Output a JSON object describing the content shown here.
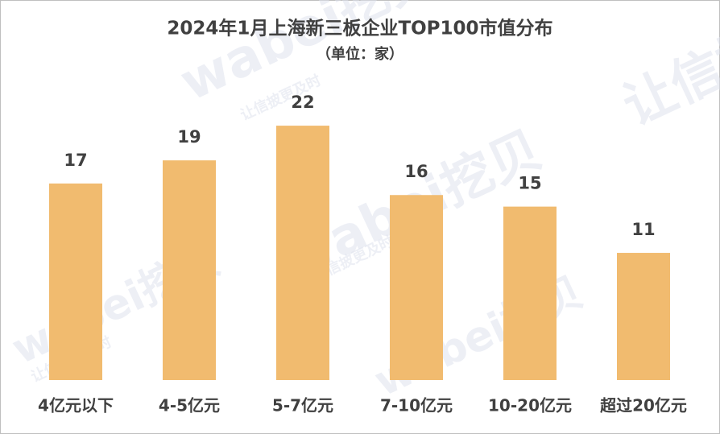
{
  "chart_data": {
    "type": "bar",
    "title": "2024年1月上海新三板企业TOP100市值分布",
    "subtitle": "（单位：家）",
    "categories": [
      "4亿元以下",
      "4-5亿元",
      "5-7亿元",
      "7-10亿元",
      "10-20亿元",
      "超过20亿元"
    ],
    "values": [
      17,
      19,
      22,
      16,
      15,
      11
    ],
    "color": "#f1bb6f",
    "watermark": [
      "wabei挖贝",
      "让信披更及时"
    ]
  }
}
